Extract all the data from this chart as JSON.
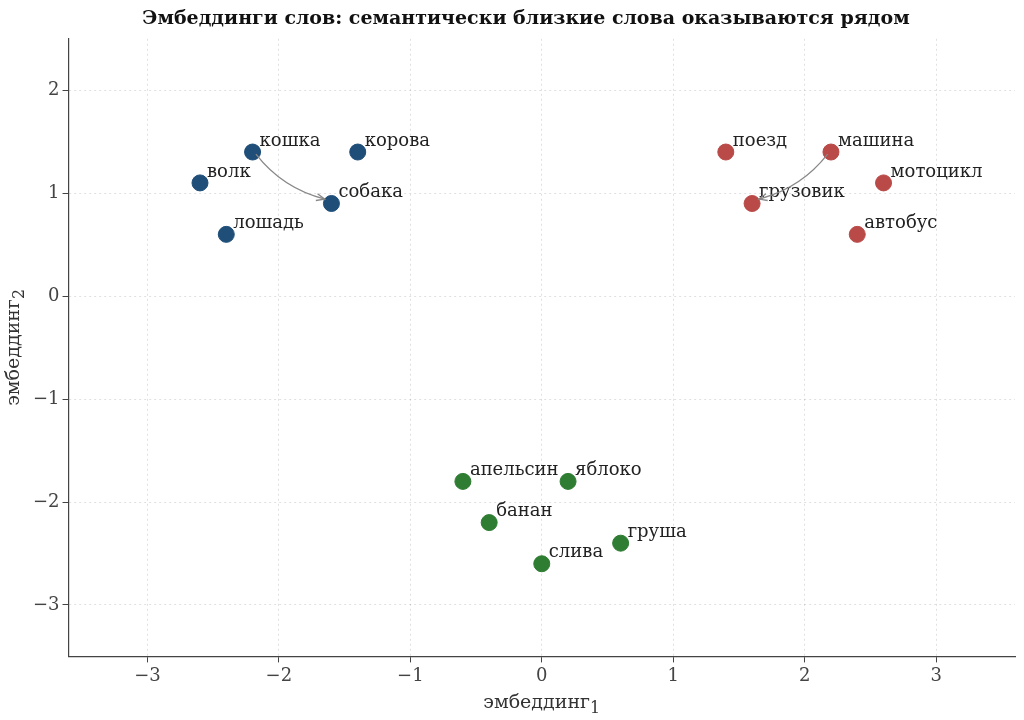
{
  "chart_data": {
    "type": "scatter",
    "title": "Эмбеддинги слов: семантически близкие слова оказываются рядом",
    "xlabel": "эмбеддинг$_{1}$",
    "ylabel": "эмбеддинг$_{2}$",
    "series": [
      {
        "color": "#1f4e79",
        "x": [
          -2.6,
          -2.2,
          -1.4,
          -1.6,
          -2.4
        ],
        "values": [
          1.1,
          1.4,
          1.4,
          0.9,
          0.6
        ]
      },
      {
        "color": "#b94a48",
        "x": [
          1.4,
          2.2,
          2.6,
          1.6,
          2.4
        ],
        "values": [
          1.4,
          1.4,
          1.1,
          0.9,
          0.6
        ]
      },
      {
        "color": "#2e7d32",
        "x": [
          -0.6,
          0.2,
          -0.4,
          0.6,
          0.0
        ],
        "values": [
          -1.8,
          -1.8,
          -2.2,
          -2.4,
          -2.6
        ]
      }
    ],
    "annotations": [
      {
        "text": "волк",
        "x": -2.6,
        "y": 1.1
      },
      {
        "text": "кошка",
        "x": -2.2,
        "y": 1.4
      },
      {
        "text": "корова",
        "x": -1.4,
        "y": 1.4
      },
      {
        "text": "собака",
        "x": -1.6,
        "y": 0.9
      },
      {
        "text": "лошадь",
        "x": -2.4,
        "y": 0.6
      },
      {
        "text": "поезд",
        "x": 1.4,
        "y": 1.4
      },
      {
        "text": "машина",
        "x": 2.2,
        "y": 1.4
      },
      {
        "text": "мотоцикл",
        "x": 2.6,
        "y": 1.1
      },
      {
        "text": "грузовик",
        "x": 1.6,
        "y": 0.9
      },
      {
        "text": "автобус",
        "x": 2.4,
        "y": 0.6
      },
      {
        "text": "апельсин",
        "x": -0.6,
        "y": -1.8
      },
      {
        "text": "яблоко",
        "x": 0.2,
        "y": -1.8
      },
      {
        "text": "банан",
        "x": -0.4,
        "y": -2.2
      },
      {
        "text": "груша",
        "x": 0.6,
        "y": -2.4
      },
      {
        "text": "слива",
        "x": 0.0,
        "y": -2.6
      }
    ],
    "xlim": [
      -3.6,
      3.6
    ],
    "ylim": [
      -3.5,
      2.5
    ],
    "xticks": [
      {
        "value": -3,
        "label": "−3"
      },
      {
        "value": -2,
        "label": "−2"
      },
      {
        "value": -1,
        "label": "−1"
      },
      0,
      1,
      2,
      3
    ],
    "yticks": [
      {
        "value": -3,
        "label": "−3"
      },
      {
        "value": -2,
        "label": "−2"
      },
      {
        "value": -1,
        "label": "−1"
      },
      0,
      1,
      2
    ],
    "grid": true,
    "legend": false,
    "marker": "circle"
  }
}
